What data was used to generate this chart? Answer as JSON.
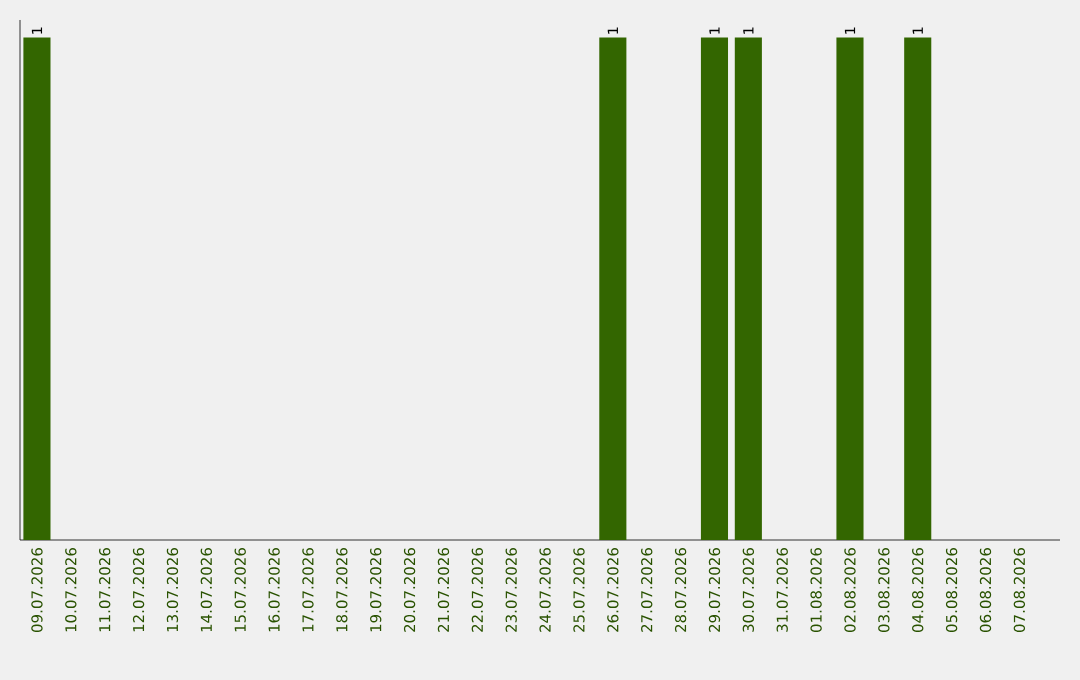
{
  "chart_data": {
    "type": "bar",
    "categories": [
      "09.07.2026",
      "10.07.2026",
      "11.07.2026",
      "12.07.2026",
      "13.07.2026",
      "14.07.2026",
      "15.07.2026",
      "16.07.2026",
      "17.07.2026",
      "18.07.2026",
      "19.07.2026",
      "20.07.2026",
      "21.07.2026",
      "22.07.2026",
      "23.07.2026",
      "24.07.2026",
      "25.07.2026",
      "26.07.2026",
      "27.07.2026",
      "28.07.2026",
      "29.07.2026",
      "30.07.2026",
      "31.07.2026",
      "01.08.2026",
      "02.08.2026",
      "03.08.2026",
      "04.08.2026",
      "05.08.2026",
      "06.08.2026",
      "07.08.2026"
    ],
    "values": [
      1,
      null,
      null,
      null,
      null,
      null,
      null,
      null,
      null,
      null,
      null,
      null,
      null,
      null,
      null,
      null,
      null,
      1,
      null,
      null,
      1,
      1,
      null,
      null,
      1,
      null,
      1,
      null,
      null,
      null
    ],
    "color": "#336600",
    "data_labels": true
  }
}
